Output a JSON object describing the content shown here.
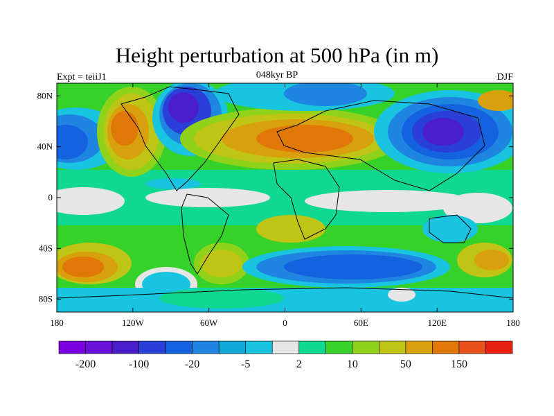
{
  "title": "Height perturbation at 500 hPa (in m)",
  "subtitle_left": "Expt = teiiJ1",
  "subtitle_center": "048kyr BP",
  "subtitle_right": "DJF",
  "lat_ticks": [
    "80N",
    "40N",
    "0",
    "40S",
    "80S"
  ],
  "lon_ticks": [
    "180",
    "120W",
    "60W",
    "0",
    "60E",
    "120E",
    "180"
  ],
  "colorbar": {
    "colors": [
      "#7a00e0",
      "#6a10d8",
      "#4a1ec8",
      "#2a3ed8",
      "#1462e0",
      "#1e86e0",
      "#10a8d8",
      "#18c4e0",
      "#e6e6e6",
      "#10d890",
      "#36d22a",
      "#90d21a",
      "#c0c414",
      "#d8a00c",
      "#e07808",
      "#e8501c",
      "#e82010"
    ],
    "labels": [
      "-200",
      "-100",
      "-20",
      "-5",
      "2",
      "10",
      "50",
      "150"
    ]
  },
  "field_colors": {
    "high": "#e07808",
    "mid_high": "#d8a00c",
    "mid": "#c0c414",
    "low_pos": "#90d21a",
    "near_zero_pos": "#36d22a",
    "cyan_green": "#10d890",
    "neutral": "#e6e6e6",
    "light_blue": "#18c4e0",
    "blue": "#1e86e0",
    "dark_blue": "#1462e0",
    "deep_blue": "#2a3ed8",
    "purple": "#4a1ec8"
  }
}
